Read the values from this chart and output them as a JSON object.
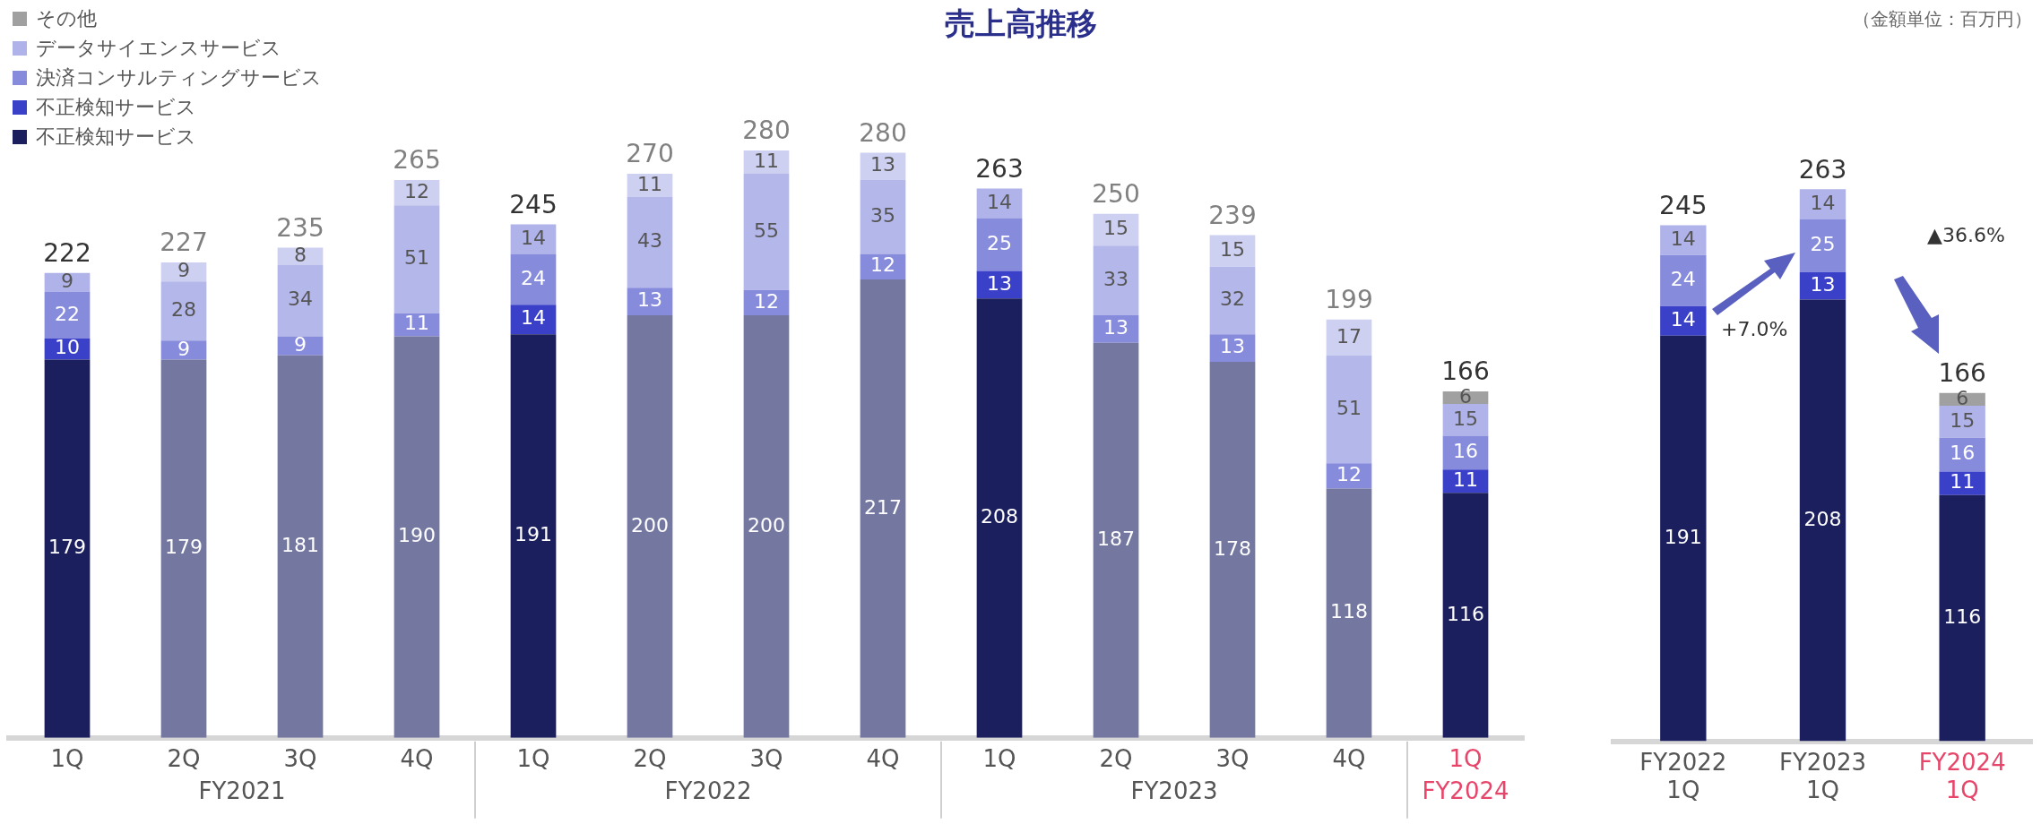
{
  "chart_data": [
    {
      "type": "bar",
      "title": "売上高推移",
      "stacked": true,
      "data_labels": true,
      "legend": "top left",
      "tick_labels": "x",
      "categories": [
        "1Q",
        "2Q",
        "3Q",
        "4Q",
        "1Q",
        "2Q",
        "3Q",
        "4Q",
        "1Q",
        "2Q",
        "3Q",
        "4Q",
        "1Q"
      ],
      "series": [
        {
          "name": "不正検知サービス",
          "color": "#1c1f5e",
          "colors": [
            "#1c1f5e",
            "#74779f",
            "#74779f",
            "#74779f",
            "#1c1f5e",
            "#74779f",
            "#74779f",
            "#74779f",
            "#1c1f5e",
            "#74779f",
            "#74779f",
            "#74779f",
            "#1c1f5e"
          ],
          "values": [
            179,
            179,
            181,
            190,
            191,
            200,
            200,
            217,
            208,
            187,
            178,
            118,
            116
          ]
        },
        {
          "name": "不正検知サービス",
          "color": "#3a40c8",
          "colors": [
            "#3a40c8",
            "#878bdc",
            "#878bdc",
            "#878bdc",
            "#3a40c8",
            "#878bdc",
            "#878bdc",
            "#878bdc",
            "#3a40c8",
            "#878bdc",
            "#878bdc",
            "#878bdc",
            "#3a40c8"
          ],
          "values": [
            10,
            9,
            9,
            11,
            14,
            13,
            12,
            12,
            13,
            13,
            13,
            12,
            11
          ]
        },
        {
          "name": "決済コンサルティングサービス",
          "color": "#878bdc",
          "colors": [
            "#878bdc",
            "#b4b7ea",
            "#b4b7ea",
            "#b4b7ea",
            "#878bdc",
            "#b4b7ea",
            "#b4b7ea",
            "#b4b7ea",
            "#878bdc",
            "#b4b7ea",
            "#b4b7ea",
            "#b4b7ea",
            "#878bdc"
          ],
          "values": [
            22,
            28,
            34,
            51,
            24,
            43,
            55,
            35,
            25,
            33,
            32,
            51,
            16
          ]
        },
        {
          "name": "データサイエンスサービス",
          "color": "#b0b3ea",
          "colors": [
            "#b0b3ea",
            "#cdd0f0",
            "#cdd0f0",
            "#cdd0f0",
            "#b0b3ea",
            "#cdd0f0",
            "#cdd0f0",
            "#cdd0f0",
            "#b0b3ea",
            "#cdd0f0",
            "#cdd0f0",
            "#cdd0f0",
            "#b0b3ea"
          ],
          "values": [
            9,
            9,
            8,
            12,
            14,
            11,
            11,
            13,
            14,
            15,
            15,
            17,
            15
          ]
        },
        {
          "name": "その他",
          "color": "#a0a0a0",
          "values": [
            null,
            null,
            null,
            null,
            null,
            null,
            null,
            null,
            null,
            null,
            null,
            null,
            6
          ]
        }
      ],
      "totals": [
        "222",
        "227",
        "235",
        "265",
        "245",
        "270",
        "280",
        "280",
        "263",
        "250",
        "239",
        "199",
        "166"
      ],
      "annotations": [
        "FY2021",
        "FY2022",
        "FY2023",
        "FY2024",
        "（金額単位：百万円）"
      ]
    },
    {
      "type": "bar",
      "stacked": true,
      "data_labels": true,
      "legend": false,
      "tick_labels": "x",
      "categories": [
        "FY2022\n1Q",
        "FY2023\n1Q",
        "FY2024\n1Q"
      ],
      "series": [
        {
          "color": "#1c1f5e",
          "values": [
            191,
            208,
            116
          ]
        },
        {
          "color": "#3a40c8",
          "values": [
            14,
            13,
            11
          ]
        },
        {
          "color": "#878bdc",
          "values": [
            24,
            25,
            16
          ]
        },
        {
          "color": "#b0b3ea",
          "values": [
            14,
            14,
            15
          ]
        },
        {
          "color": "#a0a0a0",
          "values": [
            null,
            null,
            6
          ]
        }
      ],
      "totals": [
        "245",
        "263",
        "166"
      ],
      "annotations": [
        "+7.0%",
        "▲36.6%"
      ]
    }
  ]
}
